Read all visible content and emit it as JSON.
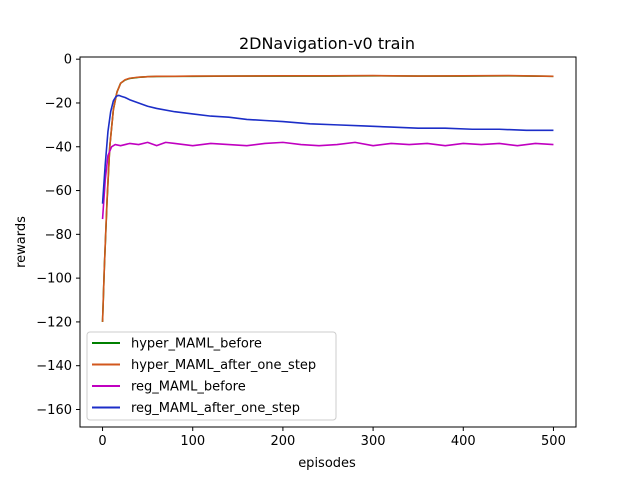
{
  "chart_data": {
    "type": "line",
    "title": "2DNavigation-v0 train",
    "xlabel": "episodes",
    "ylabel": "rewards",
    "xlim": [
      -25,
      525
    ],
    "ylim": [
      -168,
      1
    ],
    "xticks": [
      0,
      100,
      200,
      300,
      400,
      500
    ],
    "yticks": [
      0,
      -20,
      -40,
      -60,
      -80,
      -100,
      -120,
      -140,
      -160
    ],
    "xtick_labels": [
      "0",
      "100",
      "200",
      "300",
      "400",
      "500"
    ],
    "ytick_labels": [
      "0",
      "−20",
      "−40",
      "−60",
      "−80",
      "−100",
      "−120",
      "−140",
      "−160"
    ],
    "grid": false,
    "legend_position": "bottom-left",
    "series": [
      {
        "name": "hyper_MAML_before",
        "color": "#008000",
        "x": [
          0,
          2,
          5,
          8,
          12,
          16,
          20,
          25,
          30,
          40,
          50,
          60,
          80,
          100,
          150,
          200,
          250,
          300,
          350,
          400,
          450,
          500
        ],
        "values": [
          -120,
          -95,
          -65,
          -40,
          -23,
          -15,
          -11,
          -9.5,
          -8.8,
          -8.3,
          -8.0,
          -7.9,
          -7.8,
          -7.8,
          -7.7,
          -7.7,
          -7.7,
          -7.6,
          -7.7,
          -7.7,
          -7.6,
          -7.8
        ]
      },
      {
        "name": "hyper_MAML_after_one_step",
        "color": "#d2571d",
        "x": [
          0,
          2,
          5,
          8,
          12,
          16,
          20,
          25,
          30,
          40,
          50,
          60,
          80,
          100,
          150,
          200,
          250,
          300,
          350,
          400,
          450,
          500
        ],
        "values": [
          -120,
          -95,
          -64,
          -40,
          -23,
          -15,
          -11,
          -9.4,
          -8.7,
          -8.2,
          -8.0,
          -7.8,
          -7.8,
          -7.7,
          -7.7,
          -7.6,
          -7.6,
          -7.5,
          -7.7,
          -7.6,
          -7.5,
          -7.8
        ]
      },
      {
        "name": "reg_MAML_before",
        "color": "#c000c0",
        "x": [
          0,
          3,
          6,
          10,
          14,
          20,
          30,
          40,
          50,
          60,
          70,
          80,
          90,
          100,
          120,
          140,
          160,
          180,
          200,
          220,
          240,
          260,
          280,
          300,
          320,
          340,
          360,
          380,
          400,
          420,
          440,
          460,
          480,
          500
        ],
        "values": [
          -73,
          -55,
          -44,
          -40,
          -39,
          -39.5,
          -38.5,
          -39,
          -38,
          -39.5,
          -38,
          -38.5,
          -39,
          -39.5,
          -38.5,
          -39,
          -39.5,
          -38.5,
          -38,
          -39,
          -39.5,
          -39,
          -38,
          -39.5,
          -38.5,
          -39,
          -38.5,
          -39.5,
          -38.5,
          -39,
          -38.5,
          -39.5,
          -38.5,
          -39
        ]
      },
      {
        "name": "reg_MAML_after_one_step",
        "color": "#1c2ec8",
        "x": [
          0,
          3,
          6,
          9,
          12,
          15,
          18,
          21,
          25,
          30,
          40,
          50,
          60,
          80,
          100,
          120,
          140,
          160,
          180,
          200,
          230,
          260,
          290,
          320,
          350,
          380,
          410,
          440,
          470,
          500
        ],
        "values": [
          -66,
          -48,
          -33,
          -24,
          -19,
          -17,
          -16.5,
          -17,
          -17.5,
          -18.5,
          -20,
          -21.5,
          -22.5,
          -24,
          -25,
          -26,
          -26.5,
          -27.5,
          -28,
          -28.5,
          -29.5,
          -30,
          -30.5,
          -31,
          -31.5,
          -31.5,
          -32,
          -32,
          -32.5,
          -32.5
        ]
      }
    ]
  }
}
